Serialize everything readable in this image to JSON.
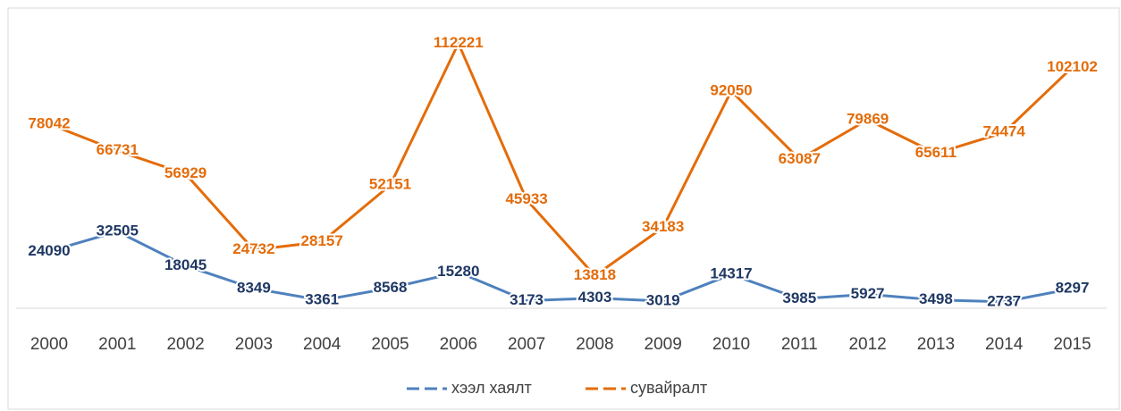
{
  "chart_data": {
    "type": "line",
    "categories": [
      "2000",
      "2001",
      "2002",
      "2003",
      "2004",
      "2005",
      "2006",
      "2007",
      "2008",
      "2009",
      "2010",
      "2011",
      "2012",
      "2013",
      "2014",
      "2015"
    ],
    "series": [
      {
        "name": "хээл хаялт",
        "color": "#4f81bd",
        "label_color": "#1f3864",
        "dashed_legend": true,
        "values": [
          24090,
          32505,
          18045,
          8349,
          3361,
          8568,
          15280,
          3173,
          4303,
          3019,
          14317,
          3985,
          5927,
          3498,
          2737,
          8297
        ]
      },
      {
        "name": "сувайралт",
        "color": "#e46c0a",
        "label_color": "#e46c0a",
        "dashed_legend": true,
        "values": [
          78042,
          66731,
          56929,
          24732,
          28157,
          52151,
          112221,
          45933,
          13818,
          34183,
          92050,
          63087,
          79869,
          65611,
          74474,
          102102
        ]
      }
    ],
    "ylim": [
      0,
      120000
    ],
    "legend": "bottom"
  }
}
